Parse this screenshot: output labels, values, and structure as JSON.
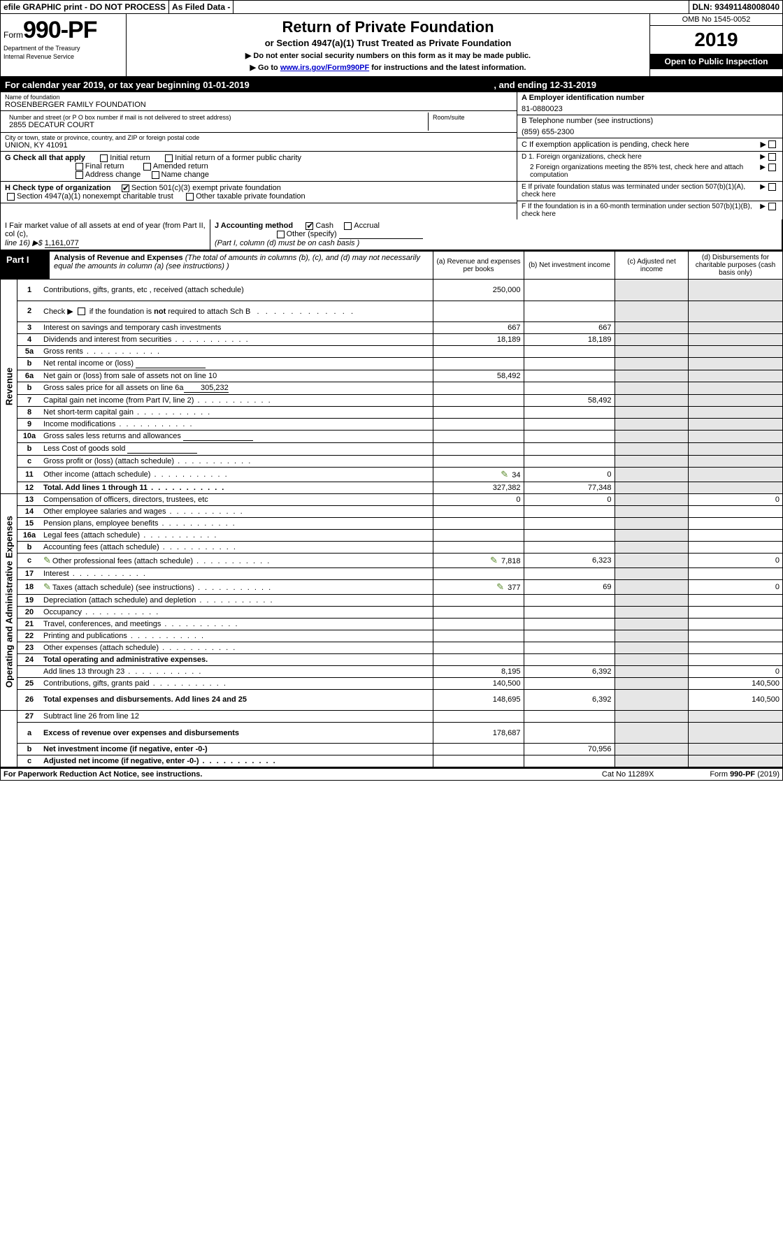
{
  "top": {
    "efile": "efile GRAPHIC print - DO NOT PROCESS",
    "asfiled": "As Filed Data -",
    "dln": "DLN: 93491148008040"
  },
  "header": {
    "form_word": "Form",
    "form_num": "990-PF",
    "dept1": "Department of the Treasury",
    "dept2": "Internal Revenue Service",
    "title": "Return of Private Foundation",
    "subtitle": "or Section 4947(a)(1) Trust Treated as Private Foundation",
    "instr1": "▶ Do not enter social security numbers on this form as it may be made public.",
    "instr2_pre": "▶ Go to ",
    "instr2_link": "www.irs.gov/Form990PF",
    "instr2_post": " for instructions and the latest information.",
    "omb": "OMB No 1545-0052",
    "year": "2019",
    "open": "Open to Public Inspection"
  },
  "cal": {
    "text": "For calendar year 2019, or tax year beginning 01-01-2019",
    "end": ", and ending 12-31-2019"
  },
  "id": {
    "name_label": "Name of foundation",
    "name": "ROSENBERGER FAMILY FOUNDATION",
    "addr_label": "Number and street (or P O  box number if mail is not delivered to street address)",
    "addr": "2855 DECATUR COURT",
    "room_label": "Room/suite",
    "city_label": "City or town, state or province, country, and ZIP or foreign postal code",
    "city": "UNION, KY  41091",
    "ein_label": "A Employer identification number",
    "ein": "81-0880023",
    "tel_label": "B Telephone number (see instructions)",
    "tel": "(859) 655-2300",
    "c_label": "C If exemption application is pending, check here"
  },
  "g": {
    "label": "G Check all that apply",
    "o1": "Initial return",
    "o2": "Initial return of a former public charity",
    "o3": "Final return",
    "o4": "Amended return",
    "o5": "Address change",
    "o6": "Name change"
  },
  "h": {
    "label": "H Check type of organization",
    "o1": "Section 501(c)(3) exempt private foundation",
    "o2": "Section 4947(a)(1) nonexempt charitable trust",
    "o3": "Other taxable private foundation"
  },
  "d": {
    "d1": "D 1. Foreign organizations, check here",
    "d2": "2 Foreign organizations meeting the 85% test, check here and attach computation",
    "e": "E   If private foundation status was terminated under section 507(b)(1)(A), check here",
    "f": "F   If the foundation is in a 60-month termination under section 507(b)(1)(B), check here"
  },
  "ij": {
    "i1": "I Fair market value of all assets at end of year (from Part II, col  (c),",
    "i2": "line 16) ▶$ ",
    "i_val": "1,161,077",
    "j": "J Accounting method",
    "j1": "Cash",
    "j2": "Accrual",
    "j3": "Other (specify)",
    "j4": "(Part I, column (d) must be on cash basis )"
  },
  "part": {
    "label": "Part I",
    "title": "Analysis of Revenue and Expenses",
    "note": " (The total of amounts in columns (b), (c), and (d) may not necessarily equal the amounts in column (a) (see instructions)  )",
    "ca": "(a)   Revenue and expenses per books",
    "cb": "(b)   Net investment income",
    "cc": "(c)   Adjusted net income",
    "cd": "(d)   Disbursements for charitable purposes (cash basis only)"
  },
  "sections": {
    "revenue": "Revenue",
    "expenses": "Operating and Administrative Expenses"
  },
  "rows": [
    {
      "n": "1",
      "d": "Contributions, gifts, grants, etc , received (attach schedule)",
      "a": "250,000",
      "tall": true
    },
    {
      "n": "2",
      "d": "Check ▶ ☐ if the foundation is not required to attach Sch B",
      "dots": true,
      "tall": true,
      "noreq": true
    },
    {
      "n": "3",
      "d": "Interest on savings and temporary cash investments",
      "a": "667",
      "b": "667"
    },
    {
      "n": "4",
      "d": "Dividends and interest from securities",
      "a": "18,189",
      "b": "18,189",
      "dots": true
    },
    {
      "n": "5a",
      "d": "Gross rents",
      "dots": true
    },
    {
      "n": "b",
      "d": "Net rental income or (loss)",
      "fill": true
    },
    {
      "n": "6a",
      "d": "Net gain or (loss) from sale of assets not on line 10",
      "a": "58,492"
    },
    {
      "n": "b",
      "d": "Gross sales price for all assets on line 6a",
      "inline": "305,232"
    },
    {
      "n": "7",
      "d": "Capital gain net income (from Part IV, line 2)",
      "b": "58,492",
      "dots": true
    },
    {
      "n": "8",
      "d": "Net short-term capital gain",
      "dots": true
    },
    {
      "n": "9",
      "d": "Income modifications",
      "dots": true
    },
    {
      "n": "10a",
      "d": "Gross sales less returns and allowances",
      "fill": true
    },
    {
      "n": "b",
      "d": "Less  Cost of goods sold",
      "fill": true,
      "dots": true
    },
    {
      "n": "c",
      "d": "Gross profit or (loss) (attach schedule)",
      "dots": true
    },
    {
      "n": "11",
      "d": "Other income (attach schedule)",
      "a": "34",
      "b": "0",
      "icon": true,
      "dots": true
    },
    {
      "n": "12",
      "d": "Total. Add lines 1 through 11",
      "a": "327,382",
      "b": "77,348",
      "bold": true,
      "dots": true
    }
  ],
  "exp_rows": [
    {
      "n": "13",
      "d": "Compensation of officers, directors, trustees, etc",
      "a": "0",
      "b": "0",
      "dd": "0"
    },
    {
      "n": "14",
      "d": "Other employee salaries and wages",
      "dots": true
    },
    {
      "n": "15",
      "d": "Pension plans, employee benefits",
      "dots": true
    },
    {
      "n": "16a",
      "d": "Legal fees (attach schedule)",
      "dots": true
    },
    {
      "n": "b",
      "d": "Accounting fees (attach schedule)",
      "dots": true
    },
    {
      "n": "c",
      "d": "Other professional fees (attach schedule)",
      "a": "7,818",
      "b": "6,323",
      "dd": "0",
      "icon": true,
      "dots": true
    },
    {
      "n": "17",
      "d": "Interest",
      "dots": true
    },
    {
      "n": "18",
      "d": "Taxes (attach schedule) (see instructions)",
      "a": "377",
      "b": "69",
      "dd": "0",
      "icon": true,
      "dots": true
    },
    {
      "n": "19",
      "d": "Depreciation (attach schedule) and depletion",
      "dots": true
    },
    {
      "n": "20",
      "d": "Occupancy",
      "dots": true
    },
    {
      "n": "21",
      "d": "Travel, conferences, and meetings",
      "dots": true
    },
    {
      "n": "22",
      "d": "Printing and publications",
      "dots": true
    },
    {
      "n": "23",
      "d": "Other expenses (attach schedule)",
      "dots": true
    },
    {
      "n": "24",
      "d": "Total operating and administrative expenses.",
      "bold": true
    },
    {
      "n": "",
      "d": "Add lines 13 through 23",
      "a": "8,195",
      "b": "6,392",
      "dd": "0",
      "dots": true
    },
    {
      "n": "25",
      "d": "Contributions, gifts, grants paid",
      "a": "140,500",
      "dd": "140,500",
      "dots": true
    },
    {
      "n": "26",
      "d": "Total expenses and disbursements. Add lines 24 and 25",
      "a": "148,695",
      "b": "6,392",
      "dd": "140,500",
      "bold": true,
      "tall": true
    }
  ],
  "net_rows": [
    {
      "n": "27",
      "d": "Subtract line 26 from line 12"
    },
    {
      "n": "a",
      "d": "Excess of revenue over expenses and disbursements",
      "a": "178,687",
      "bold": true,
      "tall": true
    },
    {
      "n": "b",
      "d": "Net investment income (if negative, enter -0-)",
      "b": "70,956",
      "bold": true
    },
    {
      "n": "c",
      "d": "Adjusted net income (if negative, enter -0-)",
      "bold": true,
      "dots": true
    }
  ],
  "footer": {
    "left": "For Paperwork Reduction Act Notice, see instructions.",
    "mid": "Cat  No  11289X",
    "right": "Form 990-PF (2019)"
  }
}
